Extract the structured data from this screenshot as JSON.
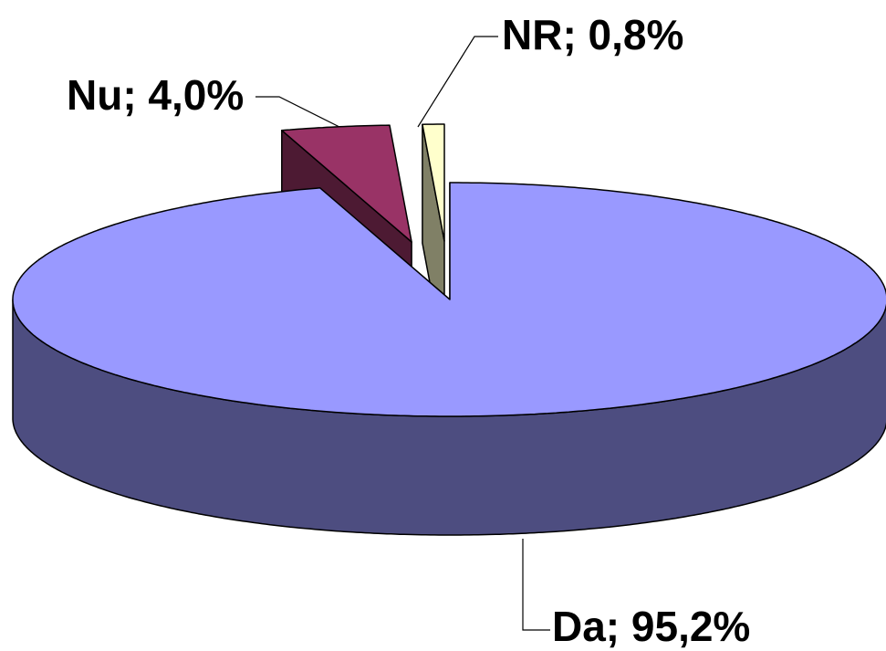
{
  "chart_data": {
    "type": "pie",
    "values": [
      95.2,
      4.0,
      0.8
    ],
    "value_labels": [
      "Da; 95,2%",
      "Nu; 4,0%",
      "NR; 0,8%"
    ],
    "colors": [
      "#9999ff",
      "#993366",
      "#ffffcc"
    ],
    "exploded": [
      false,
      true,
      true
    ]
  }
}
